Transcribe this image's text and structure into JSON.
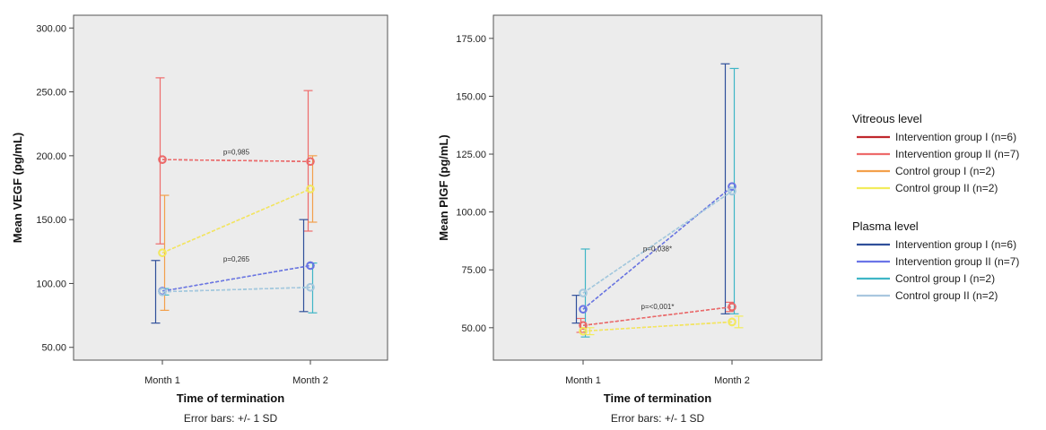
{
  "error_bar_note": "Error bars:  +/- 1 SD",
  "chart_data": [
    {
      "type": "line",
      "ylabel": "Mean VEGF (pg/mL)",
      "xlabel": "Time of termination",
      "categories": [
        "Month 1",
        "Month 2"
      ],
      "ylim": [
        40,
        310
      ],
      "yticks": [
        50,
        100,
        150,
        200,
        250,
        300
      ],
      "ytick_labels": [
        "50.00",
        "100.00",
        "150.00",
        "200.00",
        "250.00",
        "300.00"
      ],
      "grid": false,
      "series": [
        {
          "group": "Vitreous level",
          "name": "Intervention group I (n=6)",
          "color": "#c0272d",
          "values": [
            197,
            195.5
          ],
          "lower": [
            null,
            null
          ],
          "upper": [
            null,
            null
          ]
        },
        {
          "group": "Vitreous level",
          "name": "Intervention group II (n=7)",
          "color": "#ee6b6b",
          "values": [
            197,
            195.5
          ],
          "lower": [
            131,
            141
          ],
          "upper": [
            261,
            251
          ]
        },
        {
          "group": "Vitreous level",
          "name": "Control group I (n=2)",
          "color": "#f3a04b",
          "values": [
            124,
            174
          ],
          "lower": [
            79,
            148
          ],
          "upper": [
            169,
            200
          ]
        },
        {
          "group": "Vitreous level",
          "name": "Control group II (n=2)",
          "color": "#f2ec5c",
          "values": [
            124,
            174
          ],
          "lower": [
            null,
            null
          ],
          "upper": [
            null,
            null
          ]
        },
        {
          "group": "Plasma level",
          "name": "Intervention group I (n=6)",
          "color": "#2f4f9a",
          "values": [
            94,
            114
          ],
          "lower": [
            69,
            78
          ],
          "upper": [
            118,
            150
          ]
        },
        {
          "group": "Plasma level",
          "name": "Intervention group II (n=7)",
          "color": "#6b74e8",
          "values": [
            94,
            114
          ],
          "lower": [
            null,
            null
          ],
          "upper": [
            null,
            null
          ]
        },
        {
          "group": "Plasma level",
          "name": "Control group I (n=2)",
          "color": "#3fb6c6",
          "values": [
            93.5,
            97
          ],
          "lower": [
            91,
            77
          ],
          "upper": [
            96,
            116
          ]
        },
        {
          "group": "Plasma level",
          "name": "Control group II (n=2)",
          "color": "#a9c7df",
          "values": [
            93.5,
            97
          ],
          "lower": [
            null,
            null
          ],
          "upper": [
            null,
            null
          ]
        }
      ],
      "annotations": [
        {
          "text": "p=0,985",
          "x": 1.5,
          "y": 201
        },
        {
          "text": "p=0,265",
          "x": 1.5,
          "y": 117
        }
      ]
    },
    {
      "type": "line",
      "ylabel": "Mean PlGF (pg/mL)",
      "xlabel": "Time of termination",
      "categories": [
        "Month 1",
        "Month 2"
      ],
      "ylim": [
        36,
        185
      ],
      "yticks": [
        50,
        75,
        100,
        125,
        150,
        175
      ],
      "ytick_labels": [
        "50.00",
        "75.00",
        "100.00",
        "125.00",
        "150.00",
        "175.00"
      ],
      "grid": false,
      "series": [
        {
          "group": "Vitreous level",
          "name": "Intervention group I (n=6)",
          "color": "#c0272d",
          "values": [
            51,
            59
          ],
          "lower": [
            null,
            null
          ],
          "upper": [
            null,
            null
          ]
        },
        {
          "group": "Vitreous level",
          "name": "Intervention group II (n=7)",
          "color": "#ee6b6b",
          "values": [
            51,
            59
          ],
          "lower": [
            48,
            57
          ],
          "upper": [
            54,
            61
          ]
        },
        {
          "group": "Vitreous level",
          "name": "Control group I (n=2)",
          "color": "#f3a04b",
          "values": [
            48.5,
            52.5
          ],
          "lower": [
            null,
            null
          ],
          "upper": [
            null,
            null
          ]
        },
        {
          "group": "Vitreous level",
          "name": "Control group II (n=2)",
          "color": "#f2ec5c",
          "values": [
            48.5,
            52.5
          ],
          "lower": [
            47,
            50
          ],
          "upper": [
            50,
            55
          ]
        },
        {
          "group": "Plasma level",
          "name": "Intervention group I (n=6)",
          "color": "#2f4f9a",
          "values": [
            58,
            111
          ],
          "lower": [
            52,
            56
          ],
          "upper": [
            64,
            164
          ]
        },
        {
          "group": "Plasma level",
          "name": "Intervention group II (n=7)",
          "color": "#6b74e8",
          "values": [
            58,
            111
          ],
          "lower": [
            null,
            null
          ],
          "upper": [
            null,
            null
          ]
        },
        {
          "group": "Plasma level",
          "name": "Control group I (n=2)",
          "color": "#3fb6c6",
          "values": [
            65,
            109
          ],
          "lower": [
            46,
            56
          ],
          "upper": [
            84,
            162
          ]
        },
        {
          "group": "Plasma level",
          "name": "Control group II (n=2)",
          "color": "#a9c7df",
          "values": [
            65,
            109
          ],
          "lower": [
            null,
            null
          ],
          "upper": [
            null,
            null
          ]
        }
      ],
      "annotations": [
        {
          "text": "p=0,038*",
          "x": 1.5,
          "y": 83
        },
        {
          "text": "p=<0,001*",
          "x": 1.5,
          "y": 58
        }
      ]
    }
  ],
  "legend": {
    "groups": [
      {
        "title": "Vitreous level",
        "items": [
          {
            "label": "Intervention group I (n=6)",
            "color": "#c0272d"
          },
          {
            "label": "Intervention group II (n=7)",
            "color": "#ee6b6b"
          },
          {
            "label": "Control group I (n=2)",
            "color": "#f3a04b"
          },
          {
            "label": "Control group II (n=2)",
            "color": "#f2ec5c"
          }
        ]
      },
      {
        "title": "Plasma level",
        "items": [
          {
            "label": "Intervention group I (n=6)",
            "color": "#2f4f9a"
          },
          {
            "label": "Intervention group II (n=7)",
            "color": "#6b74e8"
          },
          {
            "label": "Control group I (n=2)",
            "color": "#3fb6c6"
          },
          {
            "label": "Control group II (n=2)",
            "color": "#a9c7df"
          }
        ]
      }
    ]
  }
}
